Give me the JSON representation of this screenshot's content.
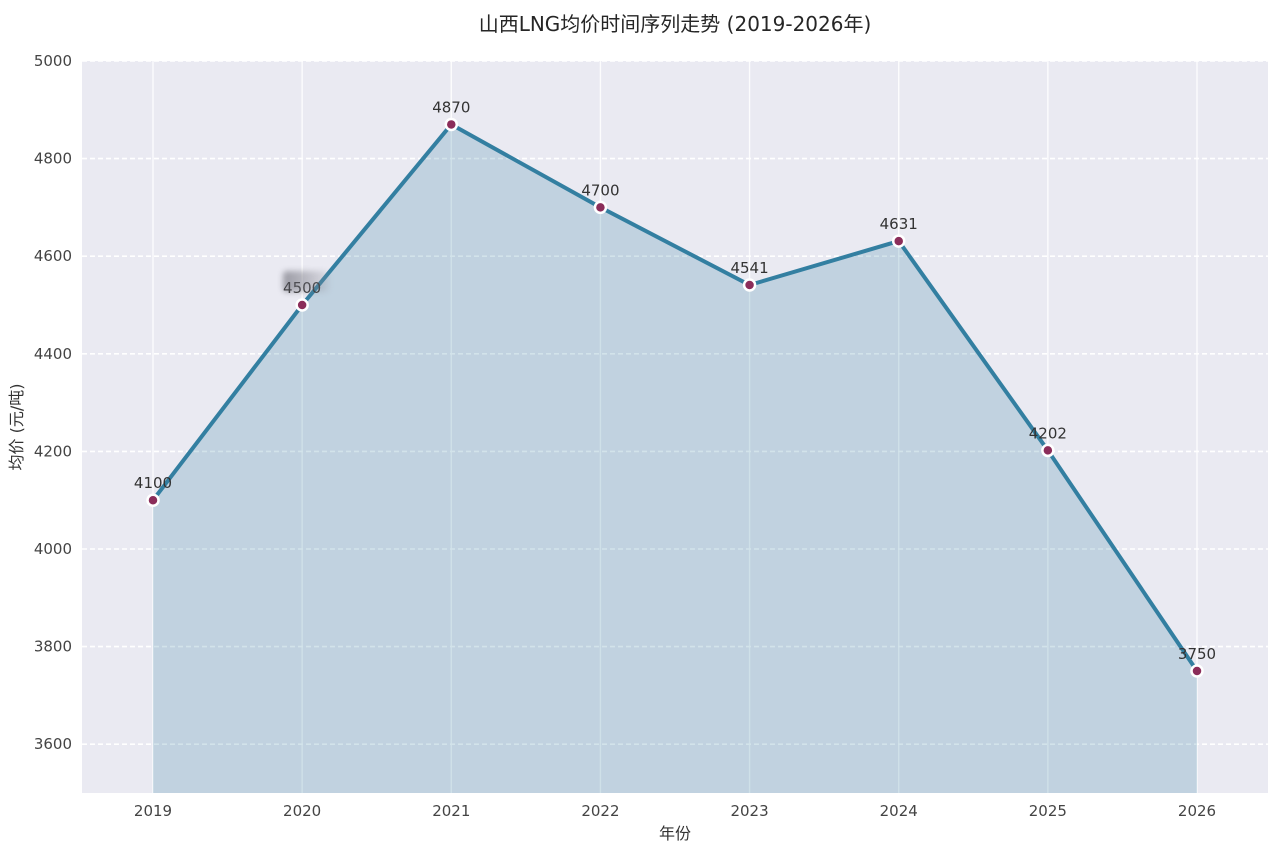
{
  "chart_data": {
    "type": "area",
    "title": "山西LNG均价时间序列走势 (2019-2026年)",
    "xlabel": "年份",
    "ylabel": "均价 (元/吨)",
    "categories": [
      "2019",
      "2020",
      "2021",
      "2022",
      "2023",
      "2024",
      "2025",
      "2026"
    ],
    "values": [
      4100,
      4500,
      4870,
      4700,
      4541,
      4631,
      4202,
      3750
    ],
    "point_labels": [
      "4100",
      "4500",
      "4870",
      "4700",
      "4541",
      "4631",
      "4202",
      "3750"
    ],
    "ylim": [
      3500,
      5000
    ],
    "yticks": [
      3600,
      3800,
      4000,
      4200,
      4400,
      4600,
      4800,
      5000
    ],
    "grid": true,
    "legend": false,
    "styles": {
      "line_color": "#337fa1",
      "fill_color": "rgba(51,127,161,0.22)",
      "marker_color": "#8b2d5a",
      "marker_edge_color": "#ffffff",
      "plot_background": "#eaeaf2",
      "figure_background": "#ffffff",
      "grid_color": "#ffffff",
      "title_color": "#262626",
      "tick_color": "#444444"
    }
  }
}
